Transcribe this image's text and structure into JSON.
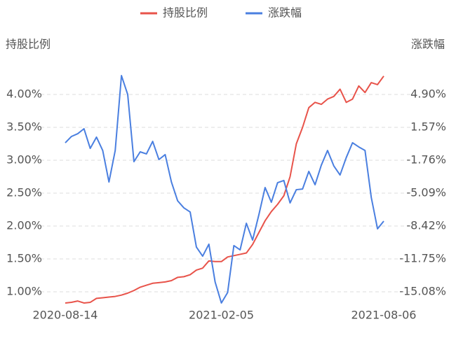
{
  "chart_data": {
    "type": "line",
    "categories": [
      "2020-08-14",
      null,
      null,
      null,
      null,
      null,
      null,
      null,
      null,
      null,
      null,
      null,
      null,
      null,
      null,
      null,
      null,
      null,
      null,
      null,
      null,
      null,
      null,
      null,
      null,
      "2021-02-05",
      null,
      null,
      null,
      null,
      null,
      null,
      null,
      null,
      null,
      null,
      null,
      null,
      null,
      null,
      null,
      null,
      null,
      null,
      null,
      null,
      null,
      null,
      null,
      null,
      null,
      "2021-08-06"
    ],
    "ylabel": "持股比例",
    "y2label": "涨跌幅",
    "ylim": [
      0.75,
      4.25
    ],
    "yticks": [
      {
        "value": 1,
        "label": "1.00%"
      },
      {
        "value": 1.5,
        "label": "1.50%"
      },
      {
        "value": 2,
        "label": "2.00%"
      },
      {
        "value": 2.5,
        "label": "2.50%"
      },
      {
        "value": 3,
        "label": "3.00%"
      },
      {
        "value": 3.5,
        "label": "3.50%"
      },
      {
        "value": 4,
        "label": "4.00%"
      }
    ],
    "y2lim": [
      -16.745,
      6.565
    ],
    "y2ticks": [
      {
        "value": -15.08,
        "label": "-15.08%"
      },
      {
        "value": -11.75,
        "label": "-11.75%"
      },
      {
        "value": -8.42,
        "label": "-8.42%"
      },
      {
        "value": -5.09,
        "label": "-5.09%"
      },
      {
        "value": -1.76,
        "label": "-1.76%"
      },
      {
        "value": 1.57,
        "label": "1.57%"
      },
      {
        "value": 4.9,
        "label": "4.90%"
      }
    ],
    "grid": true,
    "legend": "top",
    "series": [
      {
        "name": "持股比例",
        "color": "#e8534a",
        "values": [
          0.83,
          0.84,
          0.86,
          0.83,
          0.84,
          0.9,
          0.91,
          0.92,
          0.93,
          0.95,
          0.98,
          1.02,
          1.07,
          1.1,
          1.13,
          1.14,
          1.15,
          1.17,
          1.22,
          1.23,
          1.26,
          1.33,
          1.36,
          1.47,
          1.46,
          1.46,
          1.53,
          1.55,
          1.57,
          1.59,
          1.72,
          1.9,
          2.08,
          2.22,
          2.33,
          2.46,
          2.75,
          3.25,
          3.5,
          3.8,
          3.88,
          3.85,
          3.93,
          3.97,
          4.08,
          3.88,
          3.93,
          4.13,
          4.03,
          4.18,
          4.15,
          4.28
        ]
      },
      {
        "name": "涨跌幅",
        "color": "#4a7fe0",
        "axis": "y2",
        "values": [
          0.01,
          0.65,
          0.93,
          1.43,
          -0.56,
          0.58,
          -0.77,
          -3.96,
          -0.77,
          6.81,
          4.9,
          -1.9,
          -0.91,
          -1.12,
          0.15,
          -1.69,
          -1.19,
          -3.96,
          -5.87,
          -6.58,
          -7.0,
          -10.55,
          -11.47,
          -10.26,
          -14.09,
          -16.21,
          -15.15,
          -10.4,
          -10.83,
          -8.14,
          -9.84,
          -7.29,
          -4.52,
          -6.01,
          -4.03,
          -3.81,
          -6.08,
          -4.74,
          -4.67,
          -2.89,
          -4.24,
          -2.26,
          -0.77,
          -2.33,
          -3.25,
          -1.48,
          0.01,
          -0.41,
          -0.77,
          -5.52,
          -8.7,
          -7.92
        ]
      }
    ]
  }
}
